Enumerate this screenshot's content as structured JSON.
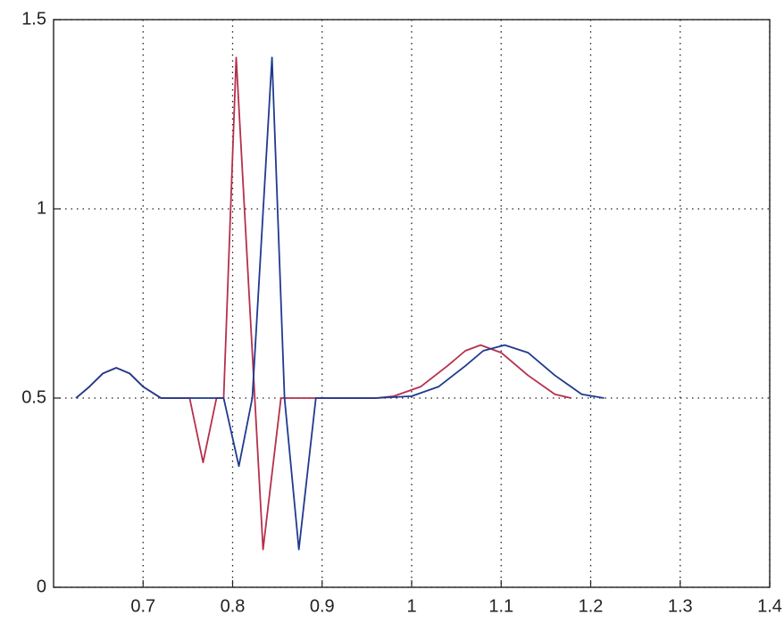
{
  "chart_data": {
    "type": "line",
    "xlim": [
      0.6,
      1.4
    ],
    "xticks": [
      0.7,
      0.8,
      0.9,
      1,
      1.1,
      1.2,
      1.3,
      1.4
    ],
    "ylim": [
      0,
      1.5
    ],
    "yticks": [
      0,
      0.5,
      1,
      1.5
    ],
    "grid": true,
    "series": [
      {
        "color": "#b5304c",
        "x": [
          0.625,
          0.64,
          0.655,
          0.67,
          0.685,
          0.7,
          0.72,
          0.752,
          0.767,
          0.782,
          0.79,
          0.804,
          0.834,
          0.854,
          0.96,
          0.98,
          1.01,
          1.04,
          1.06,
          1.077,
          1.1,
          1.13,
          1.16,
          1.178
        ],
        "values": [
          0.5,
          0.53,
          0.565,
          0.58,
          0.565,
          0.53,
          0.5,
          0.5,
          0.33,
          0.5,
          0.5,
          1.4,
          0.1,
          0.5,
          0.5,
          0.505,
          0.53,
          0.585,
          0.625,
          0.64,
          0.62,
          0.56,
          0.51,
          0.5
        ]
      },
      {
        "color": "#1f3a8f",
        "x": [
          0.625,
          0.64,
          0.655,
          0.67,
          0.685,
          0.7,
          0.72,
          0.79,
          0.807,
          0.822,
          0.844,
          0.858,
          0.874,
          0.893,
          0.96,
          1.0,
          1.03,
          1.06,
          1.08,
          1.104,
          1.13,
          1.16,
          1.19,
          1.215
        ],
        "values": [
          0.5,
          0.53,
          0.565,
          0.58,
          0.565,
          0.53,
          0.5,
          0.5,
          0.32,
          0.5,
          1.4,
          0.5,
          0.1,
          0.5,
          0.5,
          0.505,
          0.53,
          0.585,
          0.625,
          0.64,
          0.62,
          0.56,
          0.51,
          0.5
        ]
      }
    ]
  }
}
